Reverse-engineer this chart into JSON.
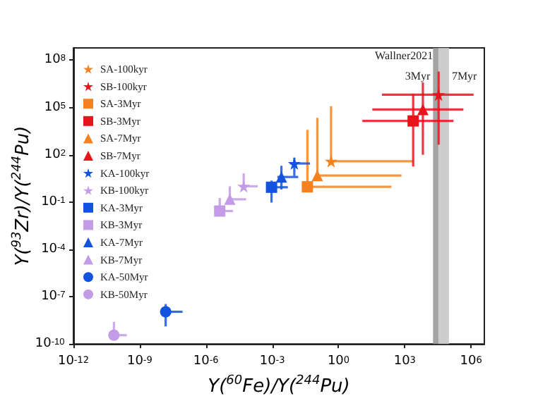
{
  "chart_data": {
    "type": "scatter",
    "xlabel": "Y($^{60}$Fe)/Y($^{244}$Pu)",
    "ylabel": "Y($^{93}$Zr)/Y($^{244}$Pu)",
    "log": "xy",
    "grid": false,
    "legend": "top left",
    "xlim": [
      1e-12,
      4000000.0
    ],
    "ylim": [
      1e-10,
      600000000.0
    ],
    "xticks": [
      {
        "value": 1e-12,
        "label": "10$^{-12}$"
      },
      {
        "value": 1e-09,
        "label": "10$^{-9}$"
      },
      {
        "value": 1e-06,
        "label": "10$^{-6}$"
      },
      {
        "value": 0.001,
        "label": "10$^{-3}$"
      },
      {
        "value": 1,
        "label": "10$^{0}$"
      },
      {
        "value": 1000.0,
        "label": "10$^{3}$"
      },
      {
        "value": 1000000.0,
        "label": "10$^{6}$"
      }
    ],
    "yticks": [
      {
        "value": 1e-10,
        "label": "10$^{-10}$"
      },
      {
        "value": 1e-07,
        "label": "10$^{-7}$"
      },
      {
        "value": 0.0001,
        "label": "10$^{-4}$"
      },
      {
        "value": 0.1,
        "label": "10$^{-1}$"
      },
      {
        "value": 100,
        "label": "10$^{2}$"
      },
      {
        "value": 100000.0,
        "label": "10$^{5}$"
      },
      {
        "value": 100000000.0,
        "label": "10$^{8}$"
      }
    ],
    "bands": [
      {
        "axis": "x",
        "from": 19000.0,
        "to": 34000.0,
        "label": "3Myr",
        "color": "#9a9a9a"
      },
      {
        "axis": "x",
        "from": 34000.0,
        "to": 100000.0,
        "label": "7Myr",
        "color": "#c8c8c8"
      }
    ],
    "annotations": [
      {
        "text": "Wallner2021",
        "x": 19000.0,
        "y": 200000000.0
      }
    ],
    "series": [
      {
        "name": "SA-100kyr",
        "color": "#f5821f",
        "marker": "star",
        "x": [
          0.46
        ],
        "values": [
          39
        ],
        "xerrors": [
          [
            0.46,
            2400
          ]
        ],
        "errors": [
          [
            39,
            120000
          ]
        ]
      },
      {
        "name": "SB-100kyr",
        "color": "#e8141c",
        "marker": "star",
        "x": [
          34000
        ],
        "values": [
          650000
        ],
        "xerrors": [
          [
            93,
            1300000
          ]
        ],
        "errors": [
          [
            440,
            19000000
          ]
        ]
      },
      {
        "name": "SA-3Myr",
        "color": "#f5821f",
        "marker": "square",
        "x": [
          0.039
        ],
        "values": [
          0.93
        ],
        "xerrors": [
          [
            0.039,
            250
          ]
        ],
        "errors": [
          [
            0.93,
            3800
          ]
        ]
      },
      {
        "name": "SB-3Myr",
        "color": "#e8141c",
        "marker": "square",
        "x": [
          2400
        ],
        "values": [
          14000
        ],
        "xerrors": [
          [
            12,
            160000
          ]
        ],
        "errors": [
          [
            18,
            720000
          ]
        ]
      },
      {
        "name": "SA-7Myr",
        "color": "#f5821f",
        "marker": "triangle",
        "x": [
          0.11
        ],
        "values": [
          4.8
        ],
        "xerrors": [
          [
            0.11,
            710
          ]
        ],
        "errors": [
          [
            4.8,
            22000
          ]
        ]
      },
      {
        "name": "SB-7Myr",
        "color": "#e8141c",
        "marker": "triangle",
        "x": [
          6600
        ],
        "values": [
          74000
        ],
        "xerrors": [
          [
            34,
            450000
          ]
        ],
        "errors": [
          [
            100,
            3800000
          ]
        ]
      },
      {
        "name": "KA-100kyr",
        "color": "#1452e0",
        "marker": "star",
        "x": [
          0.01
        ],
        "values": [
          28
        ],
        "xerrors": [
          [
            0.0063,
            0.051
          ]
        ],
        "errors": [
          [
            4.5,
            66
          ]
        ]
      },
      {
        "name": "KB-100kyr",
        "color": "#c39be6",
        "marker": "star",
        "x": [
          5.1e-05
        ],
        "values": [
          1.0
        ],
        "xerrors": [
          [
            5.1e-05,
            0.00022
          ]
        ],
        "errors": [
          [
            1.0,
            6.6
          ]
        ]
      },
      {
        "name": "KA-3Myr",
        "color": "#1452e0",
        "marker": "square",
        "x": [
          0.00093
        ],
        "values": [
          0.87
        ],
        "xerrors": [
          [
            0.00058,
            0.0051
          ]
        ],
        "errors": [
          [
            0.093,
            2.3
          ]
        ]
      },
      {
        "name": "KB-3Myr",
        "color": "#c39be6",
        "marker": "square",
        "x": [
          4.2e-06
        ],
        "values": [
          0.027
        ],
        "xerrors": [
          [
            4.2e-06,
            1.7e-05
          ]
        ],
        "errors": [
          [
            0.027,
            0.18
          ]
        ]
      },
      {
        "name": "KA-7Myr",
        "color": "#1452e0",
        "marker": "triangle",
        "x": [
          0.0026
        ],
        "values": [
          3.9
        ],
        "xerrors": [
          [
            0.0017,
            0.015
          ]
        ],
        "errors": [
          [
            0.63,
            20
          ]
        ]
      },
      {
        "name": "KB-7Myr",
        "color": "#c39be6",
        "marker": "triangle",
        "x": [
          1.2e-05
        ],
        "values": [
          0.15
        ],
        "xerrors": [
          [
            1.2e-05,
            6.6e-05
          ]
        ],
        "errors": [
          [
            0.15,
            1.0
          ]
        ]
      },
      {
        "name": "KA-50Myr",
        "color": "#1452e0",
        "marker": "circle",
        "x": [
          1.5e-08
        ],
        "values": [
          1.1e-08
        ],
        "xerrors": [
          [
            1.1e-08,
            8.7e-08
          ]
        ],
        "errors": [
          [
            1.3e-09,
            3.4e-08
          ]
        ]
      },
      {
        "name": "KB-50Myr",
        "color": "#c39be6",
        "marker": "circle",
        "x": [
          6.8e-11
        ],
        "values": [
          3.6e-10
        ],
        "xerrors": [
          [
            6.8e-11,
            2.6e-10
          ]
        ],
        "errors": [
          [
            3.6e-10,
            2.5e-09
          ]
        ]
      }
    ]
  }
}
